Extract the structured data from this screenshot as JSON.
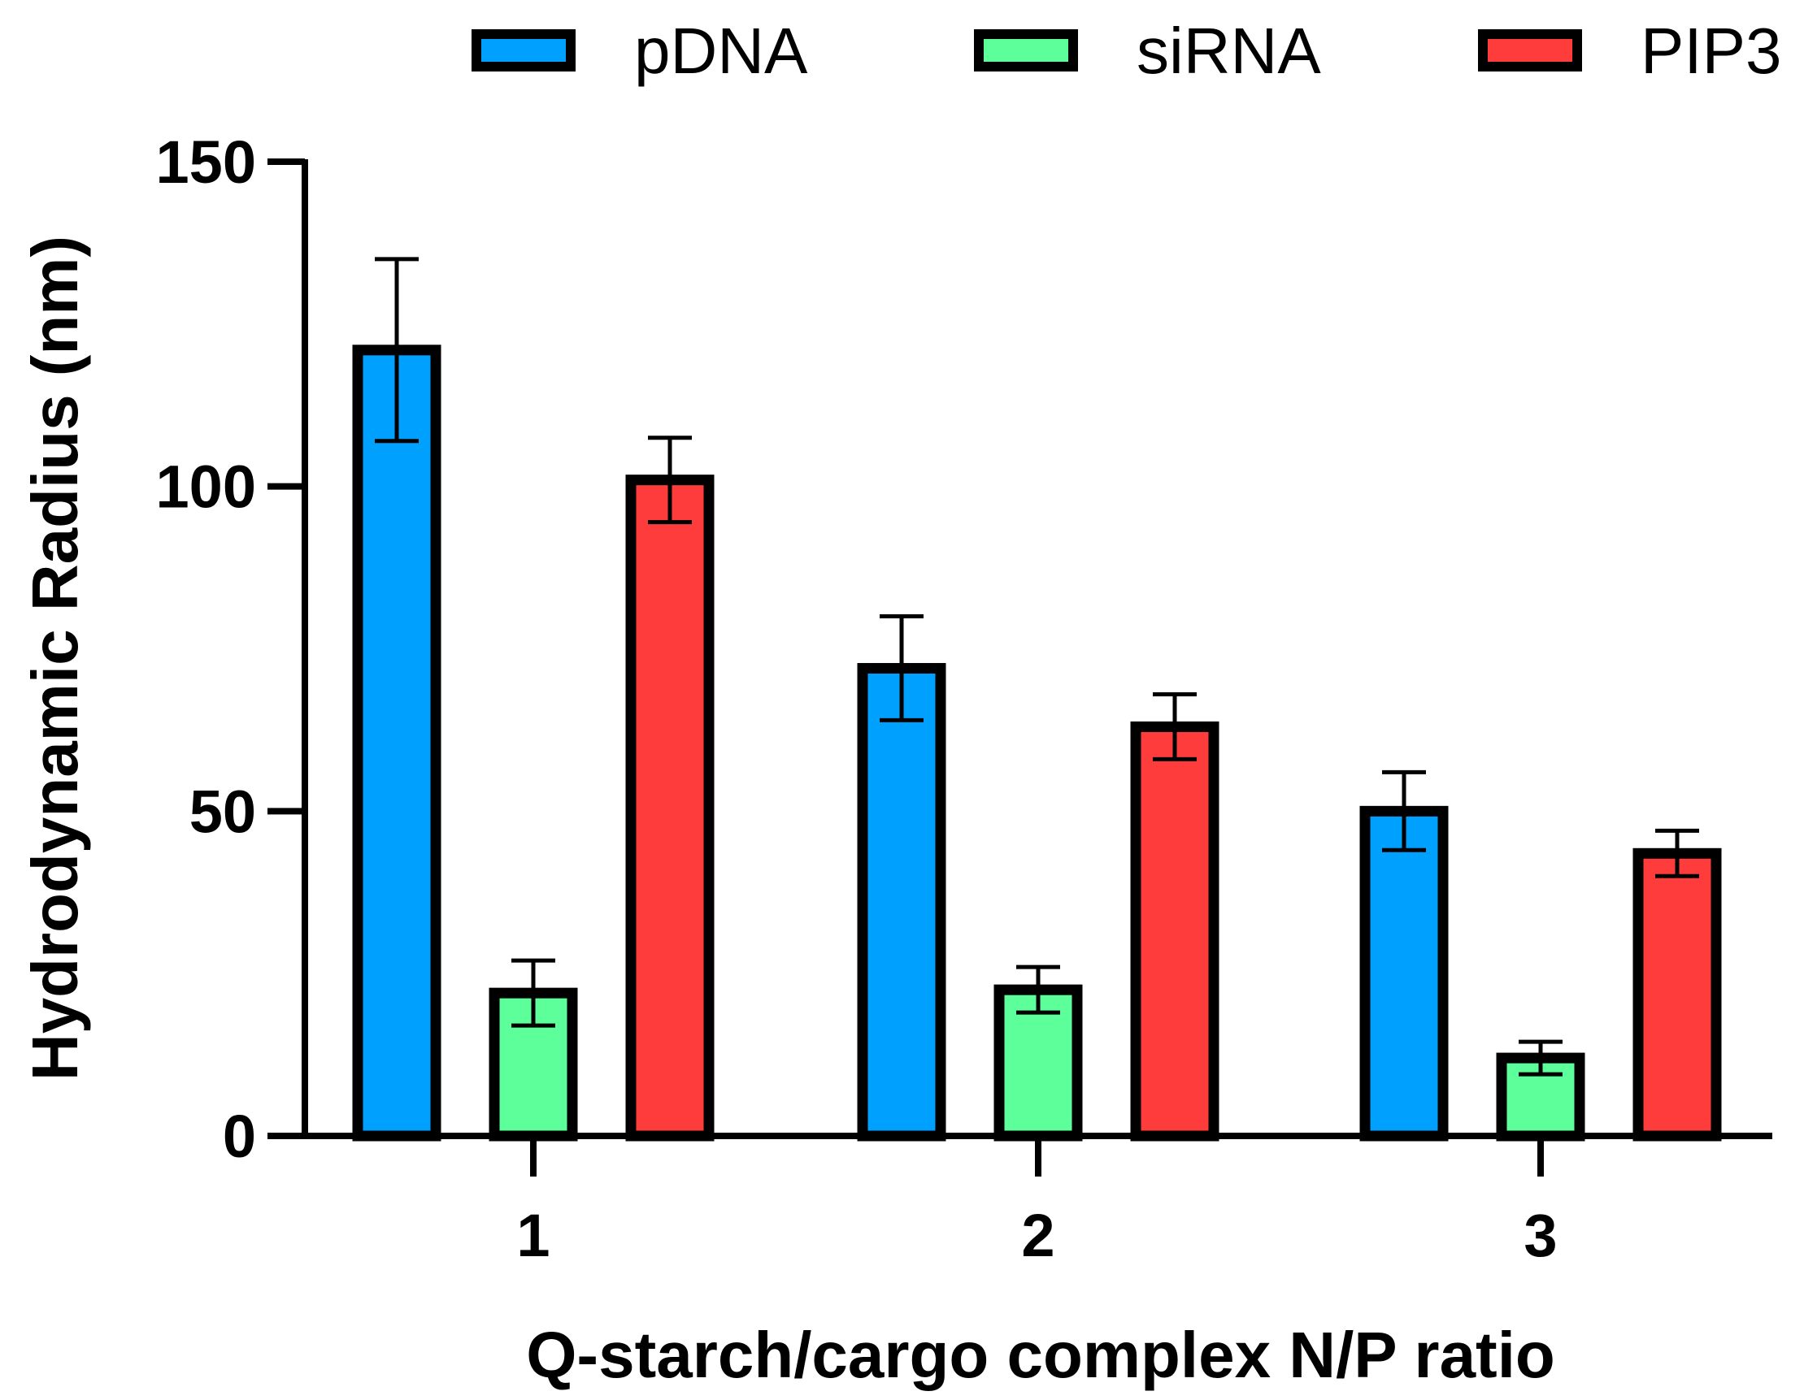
{
  "chart_data": {
    "type": "bar",
    "title": "",
    "xlabel": "Q-starch/cargo complex N/P ratio",
    "ylabel": "Hydrodynamic Radius (nm)",
    "categories": [
      "1",
      "2",
      "3"
    ],
    "ylim": [
      0,
      150
    ],
    "yticks": [
      0,
      50,
      100,
      150
    ],
    "legend_position": "top",
    "series": [
      {
        "name": "pDNA",
        "color": "#00A0FF",
        "values": [
          121,
          72,
          50
        ],
        "errors": [
          14,
          8,
          6
        ]
      },
      {
        "name": "siRNA",
        "color": "#5CFF99",
        "values": [
          22,
          22.5,
          12
        ],
        "errors": [
          5,
          3.5,
          2.5
        ]
      },
      {
        "name": "PIP3",
        "color": "#FF3C3C",
        "values": [
          101,
          63,
          43.5
        ],
        "errors": [
          6.5,
          5,
          3.5
        ]
      }
    ]
  }
}
